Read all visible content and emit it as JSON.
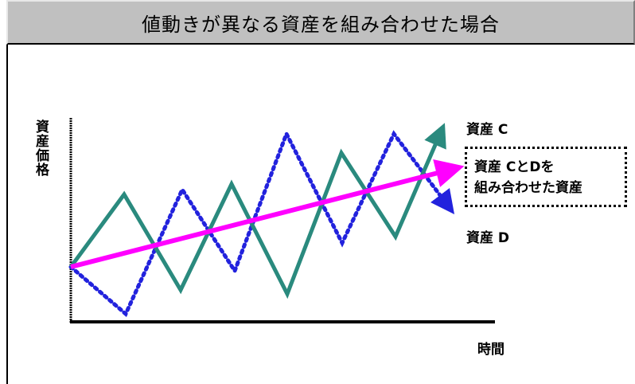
{
  "title": "値動きが異なる資産を組み合わせた場合",
  "ylabel": "資産価格",
  "xlabel": "時間",
  "labels": {
    "asset_c": "資産 C",
    "asset_d": "資産 D",
    "combined_line1": "資産 CとDを",
    "combined_line2": "組み合わせた資産"
  },
  "colors": {
    "asset_c": "#2a8a7e",
    "asset_d": "#2222dd",
    "combined": "#ff00ff",
    "axis": "#000000",
    "title_bg": "#c0c0c0"
  },
  "chart_data": {
    "type": "line",
    "x_axis_ticks_shown": false,
    "y_axis_ticks_shown": false,
    "series": [
      {
        "name": "資産 C",
        "style": "solid",
        "shape": "zigzag, rising trend, arrow at end"
      },
      {
        "name": "資産 D",
        "style": "dotted",
        "shape": "zigzag, rising trend, arrow at end"
      },
      {
        "name": "資産 CとDを組み合わせた資産",
        "style": "solid",
        "shape": "straight rising line, arrow at end"
      }
    ]
  }
}
